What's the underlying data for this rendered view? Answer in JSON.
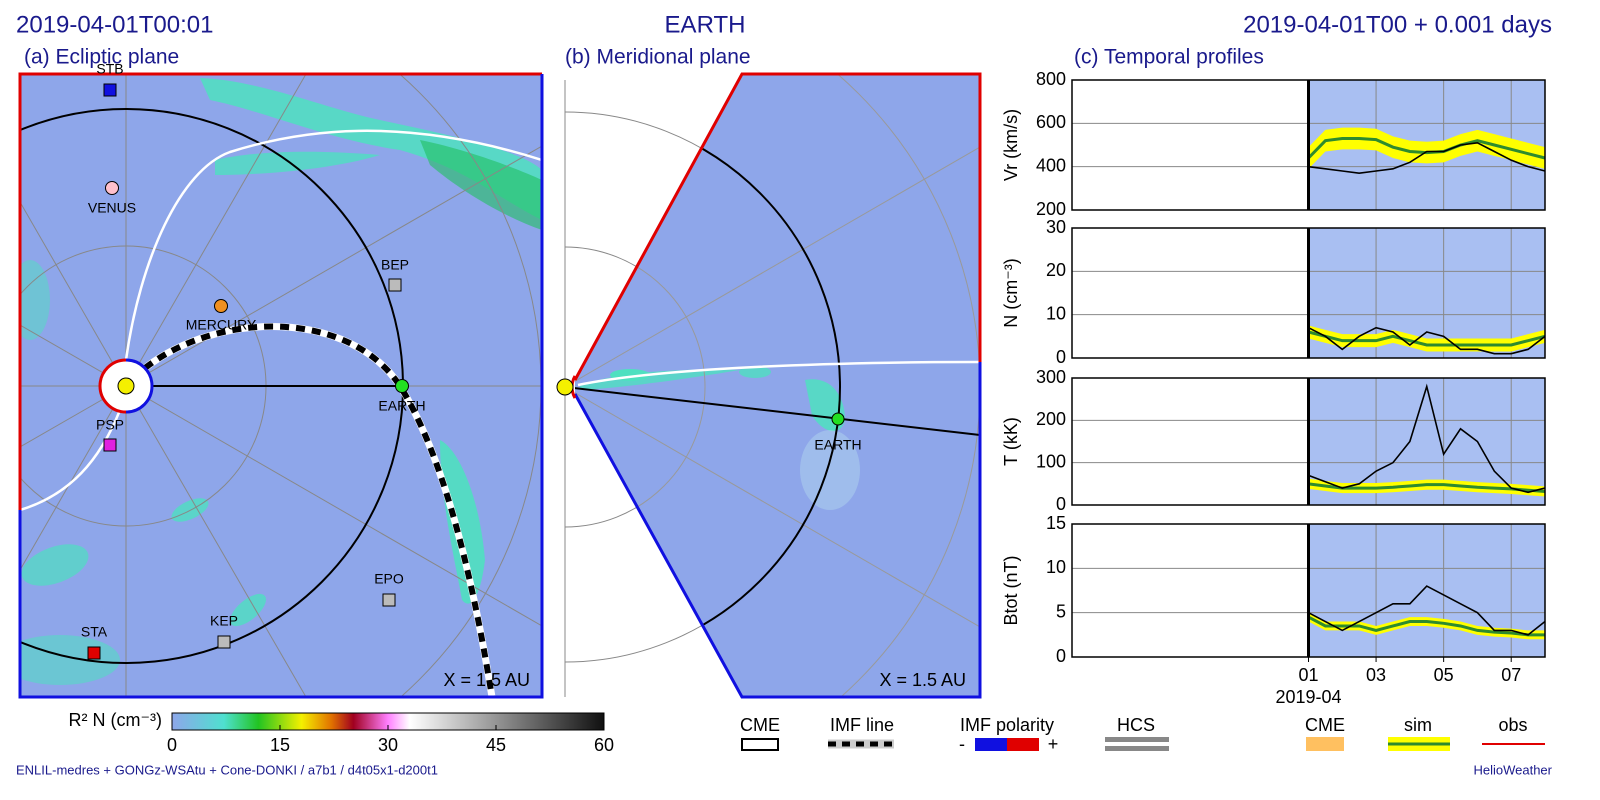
{
  "header": {
    "left": "2019-04-01T00:01",
    "center": "EARTH",
    "right": "2019-04-01T00 +  0.001 days"
  },
  "panels": {
    "a": "(a) Ecliptic plane",
    "b": "(b) Meridional plane",
    "c": "(c) Temporal profiles"
  },
  "ecliptic": {
    "bodies": [
      "STB",
      "VENUS",
      "MERCURY",
      "BEP",
      "EARTH",
      "PSP",
      "EPO",
      "KEP",
      "STA"
    ],
    "scale": "X = 1.5 AU"
  },
  "meridional": {
    "bodies": [
      "EARTH"
    ],
    "scale": "X = 1.5 AU"
  },
  "colorbar": {
    "label": "R² N (cm⁻³)",
    "lim": [
      0,
      60
    ],
    "ticks": [
      0,
      15,
      30,
      45,
      60
    ]
  },
  "legend": {
    "cme": "CME",
    "imf_line": "IMF line",
    "imf_polarity": "IMF polarity",
    "minus": "-",
    "plus": "+",
    "hcs": "HCS",
    "cme_profile": "CME"
  },
  "footer": {
    "left": "ENLIL-medres + GONGz-WSAtu + Cone-DONKI / a7b1 / d4t05x1-d200t1",
    "right": "HelioWeather"
  },
  "chart_data": [
    {
      "type": "line",
      "ylabel": "Vr (km/s)",
      "ylim": [
        200,
        800
      ],
      "yticks": [
        200,
        400,
        600,
        800
      ],
      "xlim": [
        -6,
        8
      ],
      "grid": true,
      "x": [
        1,
        1.5,
        2,
        2.5,
        3,
        3.5,
        4,
        4.5,
        5,
        5.5,
        6,
        6.5,
        7,
        7.5,
        8
      ],
      "series": [
        {
          "name": "sim",
          "color": "#2e8b2e",
          "values": [
            440,
            520,
            530,
            530,
            525,
            490,
            470,
            465,
            470,
            500,
            520,
            500,
            480,
            460,
            440
          ],
          "lower": [
            390,
            470,
            480,
            480,
            475,
            440,
            420,
            415,
            420,
            450,
            470,
            450,
            430,
            410,
            390
          ],
          "upper": [
            490,
            570,
            580,
            580,
            575,
            540,
            520,
            515,
            520,
            550,
            570,
            550,
            530,
            510,
            490
          ]
        },
        {
          "name": "obs",
          "color": "#000000",
          "values": [
            400,
            390,
            380,
            370,
            380,
            390,
            420,
            470,
            470,
            500,
            510,
            470,
            430,
            400,
            380
          ]
        }
      ]
    },
    {
      "type": "line",
      "ylabel": "N (cm⁻³)",
      "ylim": [
        0,
        30
      ],
      "yticks": [
        0,
        10,
        20,
        30
      ],
      "xlim": [
        -6,
        8
      ],
      "grid": true,
      "x": [
        1,
        1.5,
        2,
        2.5,
        3,
        3.5,
        4,
        4.5,
        5,
        5.5,
        6,
        6.5,
        7,
        7.5,
        8
      ],
      "series": [
        {
          "name": "sim",
          "color": "#2e8b2e",
          "values": [
            6,
            5,
            4,
            4,
            4,
            5,
            4,
            3,
            3,
            3,
            3,
            3,
            3,
            4,
            5
          ],
          "lower": [
            4.5,
            3.5,
            2.5,
            2.5,
            2.5,
            3.5,
            2.5,
            1.5,
            1.5,
            1.5,
            1.5,
            1.5,
            1.5,
            2.5,
            3.5
          ],
          "upper": [
            7.5,
            6.5,
            5.5,
            5.5,
            5.5,
            6.5,
            5.5,
            4.5,
            4.5,
            4.5,
            4.5,
            4.5,
            4.5,
            5.5,
            6.5
          ]
        },
        {
          "name": "obs",
          "color": "#000000",
          "values": [
            7,
            5,
            2,
            5,
            7,
            6,
            3,
            6,
            5,
            2,
            2,
            1,
            1,
            2,
            5
          ]
        }
      ]
    },
    {
      "type": "line",
      "ylabel": "T (kK)",
      "ylim": [
        0,
        300
      ],
      "yticks": [
        0,
        100,
        200,
        300
      ],
      "xlim": [
        -6,
        8
      ],
      "grid": true,
      "x": [
        1,
        1.5,
        2,
        2.5,
        3,
        3.5,
        4,
        4.5,
        5,
        5.5,
        6,
        6.5,
        7,
        7.5,
        8
      ],
      "series": [
        {
          "name": "sim",
          "color": "#2e8b2e",
          "values": [
            50,
            45,
            40,
            40,
            40,
            42,
            45,
            48,
            48,
            45,
            42,
            40,
            38,
            35,
            32
          ],
          "lower": [
            38,
            33,
            28,
            28,
            28,
            30,
            33,
            36,
            36,
            33,
            30,
            28,
            26,
            23,
            20
          ],
          "upper": [
            62,
            57,
            52,
            52,
            52,
            54,
            57,
            60,
            60,
            57,
            54,
            52,
            50,
            47,
            44
          ]
        },
        {
          "name": "obs",
          "color": "#000000",
          "values": [
            70,
            55,
            40,
            50,
            80,
            100,
            150,
            280,
            120,
            180,
            150,
            80,
            40,
            30,
            40
          ]
        }
      ]
    },
    {
      "type": "line",
      "ylabel": "Btot (nT)",
      "ylim": [
        0,
        15
      ],
      "yticks": [
        0,
        5,
        10,
        15
      ],
      "xlim": [
        -6,
        8
      ],
      "grid": true,
      "x": [
        1,
        1.5,
        2,
        2.5,
        3,
        3.5,
        4,
        4.5,
        5,
        5.5,
        6,
        6.5,
        7,
        7.5,
        8
      ],
      "xticks": [
        {
          "value": 1,
          "label": "01"
        },
        {
          "value": 3,
          "label": "03"
        },
        {
          "value": 5,
          "label": "05"
        },
        {
          "value": 7,
          "label": "07"
        }
      ],
      "xlabel": "2019-04",
      "series": [
        {
          "name": "sim",
          "color": "#2e8b2e",
          "values": [
            4.5,
            3.5,
            3.5,
            3.5,
            3.0,
            3.5,
            4.0,
            4.0,
            3.8,
            3.5,
            3.0,
            2.8,
            2.7,
            2.5,
            2.5
          ],
          "lower": [
            4,
            3,
            3,
            3,
            2.5,
            3,
            3.5,
            3.5,
            3.3,
            3,
            2.5,
            2.3,
            2.2,
            2,
            2
          ],
          "upper": [
            5,
            4,
            4,
            4,
            3.5,
            4,
            4.5,
            4.5,
            4.3,
            4,
            3.5,
            3.3,
            3.2,
            3,
            3
          ]
        },
        {
          "name": "obs",
          "color": "#000000",
          "values": [
            5,
            4,
            3,
            4,
            5,
            6,
            6,
            8,
            7,
            6,
            5,
            3,
            3,
            2.5,
            4
          ]
        }
      ]
    }
  ]
}
